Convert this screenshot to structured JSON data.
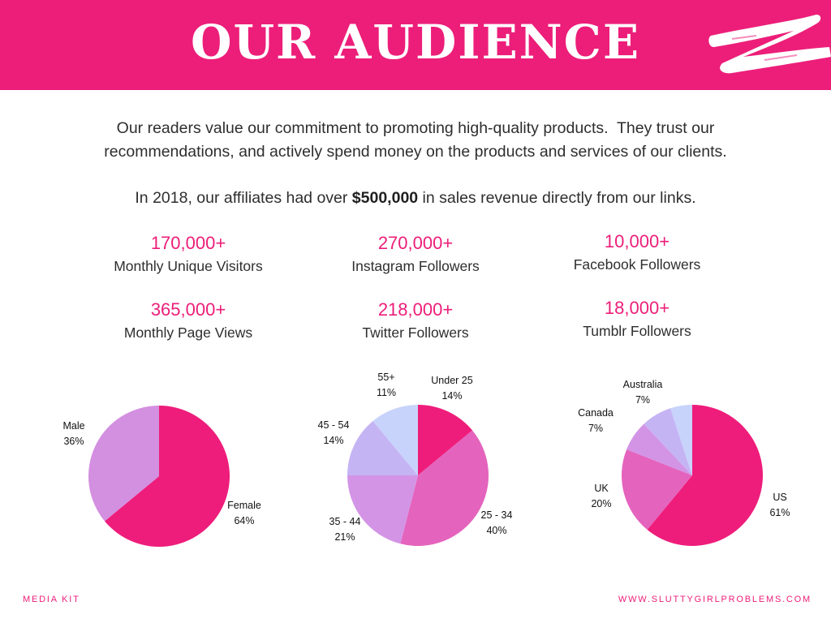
{
  "header": {
    "title": "OUR AUDIENCE",
    "accent_color": "#ec1e79"
  },
  "intro": {
    "line1": "Our readers value our commitment to promoting high-quality products.  They trust our",
    "line2": "recommendations, and actively spend money on the products and services of our clients.",
    "sales_prefix": "In 2018, our affiliates had over ",
    "sales_amount": "$500,000",
    "sales_suffix": " in sales revenue directly from our links."
  },
  "stats": [
    {
      "value": "170,000+",
      "label": "Monthly Unique Visitors"
    },
    {
      "value": "270,000+",
      "label": "Instagram Followers"
    },
    {
      "value": "10,000+",
      "label": "Facebook Followers"
    },
    {
      "value": "365,000+",
      "label": "Monthly Page Views"
    },
    {
      "value": "218,000+",
      "label": "Twitter Followers"
    },
    {
      "value": "18,000+",
      "label": "Tumblr Followers"
    }
  ],
  "chart_data": [
    {
      "type": "pie",
      "categories": [
        "Female",
        "Male"
      ],
      "values": [
        64,
        36
      ],
      "labels": [
        "64%",
        "36%"
      ],
      "colors": [
        "#ee1d7b",
        "#d38fe0"
      ]
    },
    {
      "type": "pie",
      "categories": [
        "Under 25",
        "25 - 34",
        "35 - 44",
        "45 - 54",
        "55+"
      ],
      "values": [
        14,
        40,
        21,
        14,
        11
      ],
      "labels": [
        "14%",
        "40%",
        "21%",
        "14%",
        "11%"
      ],
      "colors": [
        "#ee1d7b",
        "#e463bd",
        "#d394e6",
        "#c5b4f4",
        "#c8d3fb"
      ]
    },
    {
      "type": "pie",
      "categories": [
        "US",
        "UK",
        "Canada",
        "Australia",
        ""
      ],
      "values": [
        61,
        20,
        7,
        7,
        5
      ],
      "labels": [
        "61%",
        "20%",
        "7%",
        "7%",
        ""
      ],
      "colors": [
        "#ee1d7b",
        "#e463bd",
        "#d394e6",
        "#c5b4f4",
        "#c8d3fb"
      ]
    }
  ],
  "footer": {
    "left": "MEDIA KIT",
    "right": "WWW.SLUTTYGIRLPROBLEMS.COM"
  }
}
